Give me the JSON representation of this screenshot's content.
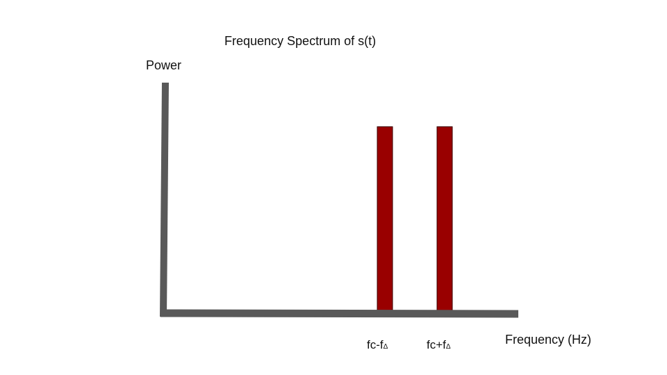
{
  "chart_data": {
    "type": "bar",
    "title": "Frequency Spectrum of s(t)",
    "ylabel": "Power",
    "xlabel": "Frequency (Hz)",
    "categories": [
      {
        "main": "fc-f",
        "sub": "Δ"
      },
      {
        "main": "fc+f",
        "sub": "Δ"
      }
    ],
    "values": [
      1,
      1
    ],
    "ylim": [
      0,
      1.24
    ],
    "grid": false,
    "colors": {
      "axis": "#595959",
      "bar": "#990000",
      "bar_edge": "#3a0000"
    }
  }
}
